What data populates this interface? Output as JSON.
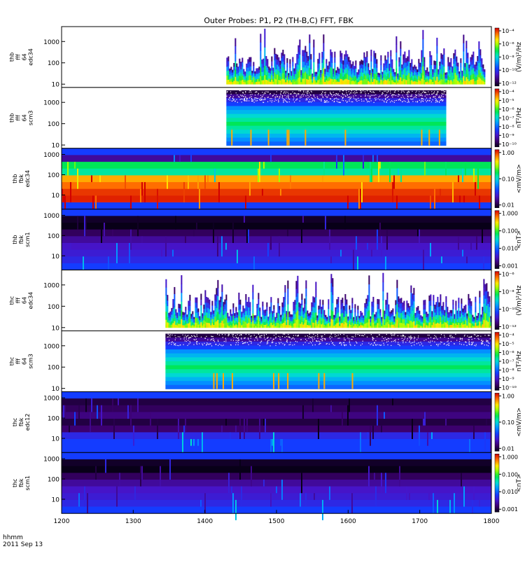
{
  "chart_data": {
    "type": "heatmap",
    "title": "Outer Probes: P1, P2 (TH-B,C) FFT, FBK",
    "x_axis": {
      "label_line1": "hhmm",
      "label_line2": "2011 Sep 13",
      "range": [
        1200,
        1800
      ],
      "ticks": [
        "1200",
        "1300",
        "1400",
        "1500",
        "1600",
        "1700",
        "1800"
      ]
    },
    "panels": [
      {
        "label_lines": [
          "thb",
          "fff",
          "64",
          "edc34"
        ],
        "y_range": [
          7,
          5000
        ],
        "y_ticks": [
          "10",
          "100",
          "1000"
        ],
        "colorbar_label": "(V/m)²/Hz",
        "colorbar_ticks": [
          "10⁻⁴",
          "10⁻⁶",
          "10⁻⁸",
          "10⁻¹⁰",
          "10⁻¹²"
        ],
        "kind": "fft",
        "data_start": 1430,
        "data_end": 1790
      },
      {
        "label_lines": [
          "thb",
          "fff",
          "64",
          "scm3"
        ],
        "y_range": [
          7,
          5000
        ],
        "y_ticks": [
          "10",
          "100",
          "1000"
        ],
        "colorbar_label": "nT²/Hz",
        "colorbar_ticks": [
          "10⁻⁴",
          "10⁻⁵",
          "10⁻⁶",
          "10⁻⁷",
          "10⁻⁸",
          "10⁻⁹",
          "10⁻¹⁰"
        ],
        "kind": "scm_fft",
        "data_start": 1430,
        "data_end": 1737
      },
      {
        "label_lines": [
          "thb",
          "fbk",
          "edc34"
        ],
        "y_range": [
          2,
          2000
        ],
        "y_ticks": [
          "10",
          "100",
          "1000"
        ],
        "colorbar_label": "<mV/m>",
        "colorbar_ticks": [
          "1.00",
          "0.10",
          "0.01"
        ],
        "kind": "fbk_e",
        "data_start": 1200,
        "data_end": 1800
      },
      {
        "label_lines": [
          "thb",
          "fbk",
          "scm1"
        ],
        "y_range": [
          2,
          2000
        ],
        "y_ticks": [
          "10",
          "100",
          "1000"
        ],
        "colorbar_label": "<nT>",
        "colorbar_ticks": [
          "1.000",
          "0.100",
          "0.010",
          "0.001"
        ],
        "kind": "fbk_b",
        "data_start": 1200,
        "data_end": 1800
      },
      {
        "label_lines": [
          "thc",
          "fff",
          "64",
          "edc34"
        ],
        "y_range": [
          7,
          5000
        ],
        "y_ticks": [
          "10",
          "100",
          "1000"
        ],
        "colorbar_label": "(V/m)²/Hz",
        "colorbar_ticks": [
          "10⁻⁶",
          "10⁻⁸",
          "10⁻¹⁰",
          "10⁻¹²"
        ],
        "kind": "fft",
        "data_start": 1345,
        "data_end": 1800
      },
      {
        "label_lines": [
          "thc",
          "fff",
          "64",
          "scm3"
        ],
        "y_range": [
          7,
          5000
        ],
        "y_ticks": [
          "10",
          "100",
          "1000"
        ],
        "colorbar_label": "nT²/Hz",
        "colorbar_ticks": [
          "10⁻⁴",
          "10⁻⁵",
          "10⁻⁶",
          "10⁻⁷",
          "10⁻⁸",
          "10⁻⁹",
          "10⁻¹⁰"
        ],
        "kind": "scm_fft",
        "data_start": 1345,
        "data_end": 1800
      },
      {
        "label_lines": [
          "thc",
          "fbk",
          "edc12"
        ],
        "y_range": [
          2,
          2000
        ],
        "y_ticks": [
          "10",
          "100",
          "1000"
        ],
        "colorbar_label": "<mV/m>",
        "colorbar_ticks": [
          "1.00",
          "0.10",
          "0.01"
        ],
        "kind": "fbk_e_quiet",
        "data_start": 1200,
        "data_end": 1800
      },
      {
        "label_lines": [
          "thc",
          "fbk",
          "scm1"
        ],
        "y_range": [
          2,
          2000
        ],
        "y_ticks": [
          "10",
          "100",
          "1000"
        ],
        "colorbar_label": "<nT>",
        "colorbar_ticks": [
          "1.000",
          "0.100",
          "0.010",
          "0.001"
        ],
        "kind": "fbk_b",
        "data_start": 1200,
        "data_end": 1800
      }
    ]
  }
}
